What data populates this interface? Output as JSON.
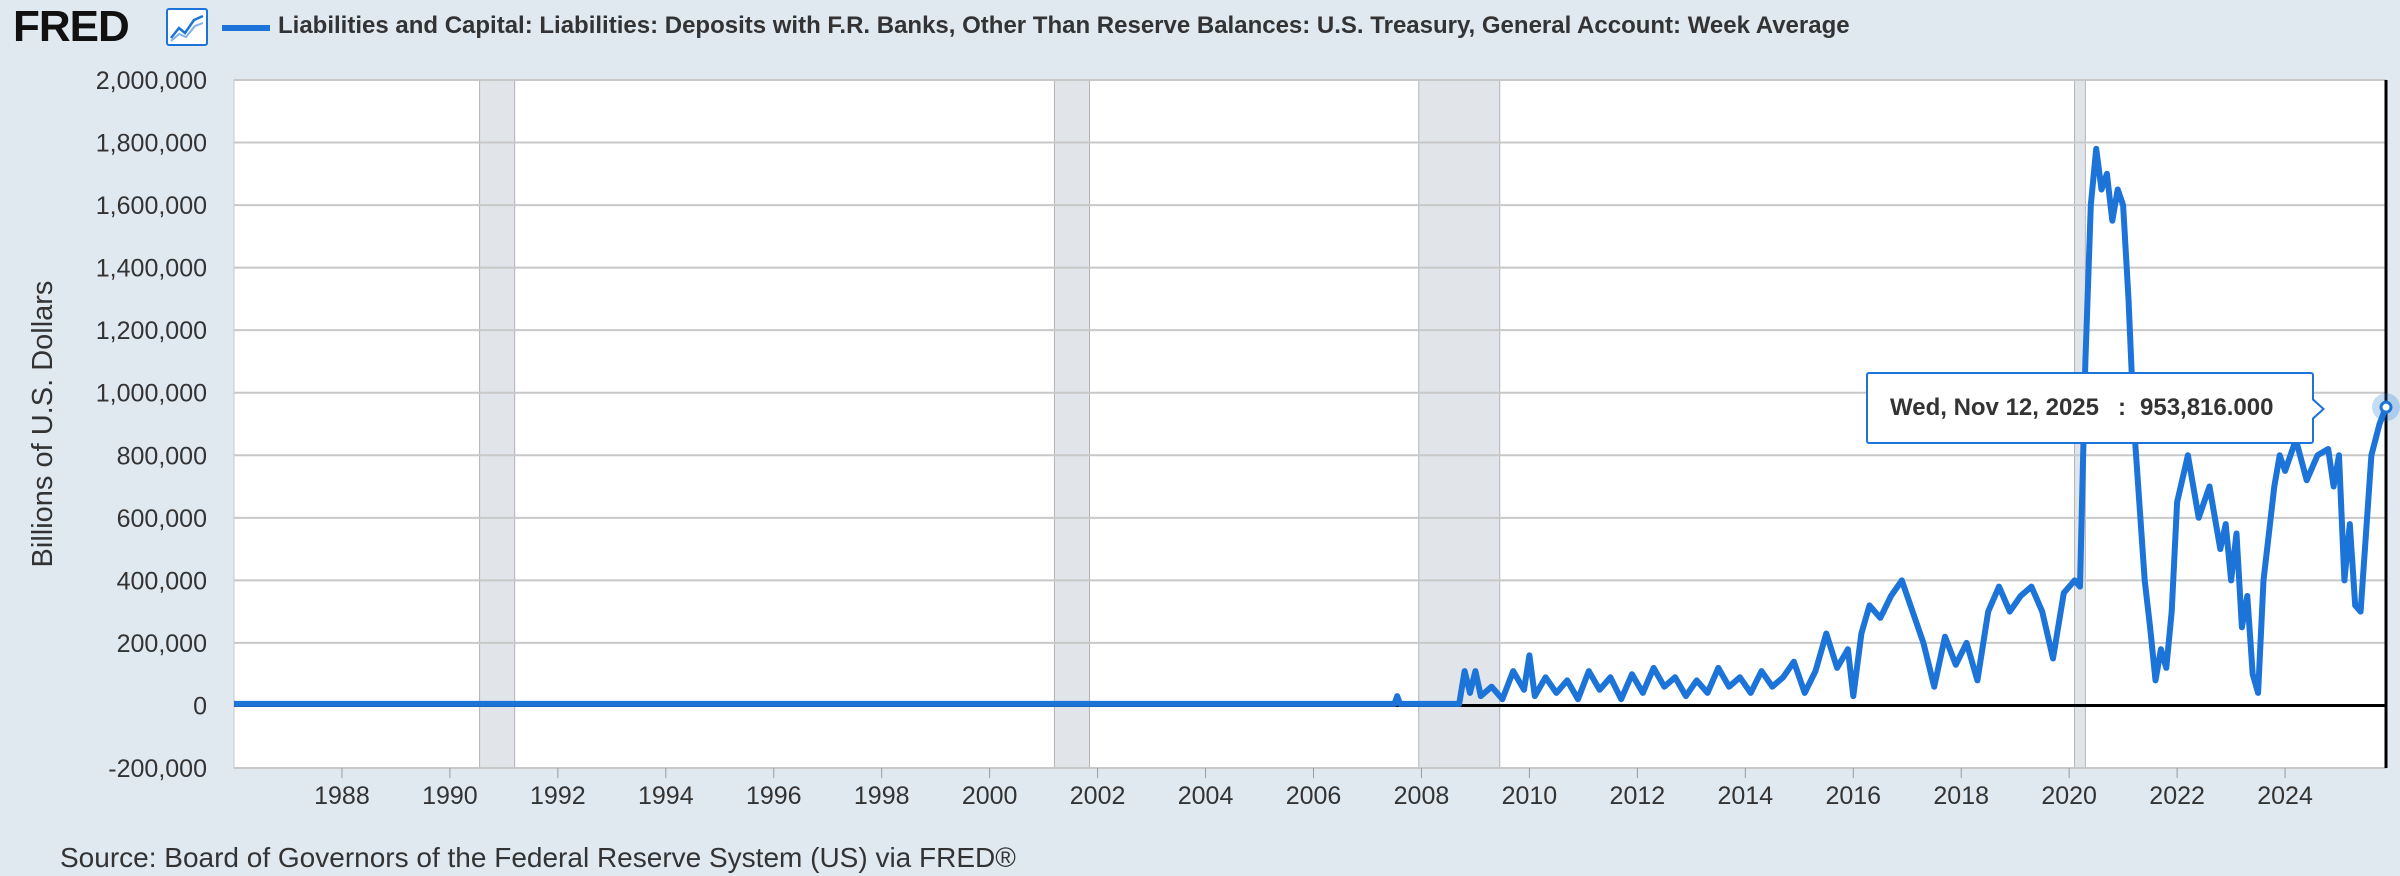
{
  "header": {
    "logo": "FRED",
    "logo_icon": "line-chart-icon",
    "series_title": "Liabilities and Capital: Liabilities: Deposits with F.R. Banks, Other Than Reserve Balances: U.S. Treasury, General Account: Week Average"
  },
  "source": "Source: Board of Governors of the Federal Reserve System (US) via FRED®",
  "tooltip": {
    "date": "Wed, Nov 12, 2025",
    "separator": ":",
    "value": "953,816.000"
  },
  "colors": {
    "series": "#1c74d8",
    "background": "#e1e9f0",
    "plot": "#ffffff",
    "recession": "#e1e5e9",
    "grid": "#c8c8c8"
  },
  "chart_data": {
    "type": "line",
    "title": "Liabilities and Capital: Liabilities: Deposits with F.R. Banks, Other Than Reserve Balances: U.S. Treasury, General Account: Week Average",
    "xlabel": "",
    "ylabel": "Billions of U.S. Dollars",
    "xlim": [
      1986.0,
      2025.87
    ],
    "ylim": [
      -200000,
      2000000
    ],
    "y_ticks": [
      -200000,
      0,
      200000,
      400000,
      600000,
      800000,
      1000000,
      1200000,
      1400000,
      1600000,
      1800000,
      2000000
    ],
    "y_tick_labels": [
      "-200,000",
      "0",
      "200,000",
      "400,000",
      "600,000",
      "800,000",
      "1,000,000",
      "1,200,000",
      "1,400,000",
      "1,600,000",
      "1,800,000",
      "2,000,000"
    ],
    "x_ticks": [
      1988,
      1990,
      1992,
      1994,
      1996,
      1998,
      2000,
      2002,
      2004,
      2006,
      2008,
      2010,
      2012,
      2014,
      2016,
      2018,
      2020,
      2022,
      2024
    ],
    "x_tick_labels": [
      "1988",
      "1990",
      "1992",
      "1994",
      "1996",
      "1998",
      "2000",
      "2002",
      "2004",
      "2006",
      "2008",
      "2010",
      "2012",
      "2014",
      "2016",
      "2018",
      "2020",
      "2022",
      "2024"
    ],
    "grid": true,
    "recessions": [
      [
        1990.55,
        1991.2
      ],
      [
        2001.2,
        2001.85
      ],
      [
        2007.95,
        2009.45
      ],
      [
        2020.1,
        2020.3
      ]
    ],
    "series": [
      {
        "name": "Liabilities and Capital: Liabilities: Deposits with F.R. Banks, Other Than Reserve Balances: U.S. Treasury, General Account: Week Average",
        "points": [
          [
            1986.0,
            5000
          ],
          [
            1990.0,
            5000
          ],
          [
            1995.0,
            5000
          ],
          [
            2000.0,
            5000
          ],
          [
            2002.96,
            5000
          ],
          [
            2003.0,
            5000
          ],
          [
            2005.0,
            5000
          ],
          [
            2007.5,
            5000
          ],
          [
            2007.55,
            30000
          ],
          [
            2007.6,
            5000
          ],
          [
            2008.7,
            5000
          ],
          [
            2008.8,
            110000
          ],
          [
            2008.9,
            40000
          ],
          [
            2009.0,
            110000
          ],
          [
            2009.1,
            30000
          ],
          [
            2009.3,
            60000
          ],
          [
            2009.5,
            20000
          ],
          [
            2009.7,
            110000
          ],
          [
            2009.9,
            50000
          ],
          [
            2010.0,
            160000
          ],
          [
            2010.1,
            30000
          ],
          [
            2010.3,
            90000
          ],
          [
            2010.5,
            40000
          ],
          [
            2010.7,
            80000
          ],
          [
            2010.9,
            20000
          ],
          [
            2011.1,
            110000
          ],
          [
            2011.3,
            50000
          ],
          [
            2011.5,
            90000
          ],
          [
            2011.7,
            20000
          ],
          [
            2011.9,
            100000
          ],
          [
            2012.1,
            40000
          ],
          [
            2012.3,
            120000
          ],
          [
            2012.5,
            60000
          ],
          [
            2012.7,
            90000
          ],
          [
            2012.9,
            30000
          ],
          [
            2013.1,
            80000
          ],
          [
            2013.3,
            40000
          ],
          [
            2013.5,
            120000
          ],
          [
            2013.7,
            60000
          ],
          [
            2013.9,
            90000
          ],
          [
            2014.1,
            40000
          ],
          [
            2014.3,
            110000
          ],
          [
            2014.5,
            60000
          ],
          [
            2014.7,
            90000
          ],
          [
            2014.9,
            140000
          ],
          [
            2015.1,
            40000
          ],
          [
            2015.3,
            110000
          ],
          [
            2015.5,
            230000
          ],
          [
            2015.7,
            120000
          ],
          [
            2015.9,
            180000
          ],
          [
            2016.0,
            30000
          ],
          [
            2016.15,
            230000
          ],
          [
            2016.3,
            320000
          ],
          [
            2016.5,
            280000
          ],
          [
            2016.7,
            350000
          ],
          [
            2016.9,
            400000
          ],
          [
            2017.1,
            300000
          ],
          [
            2017.3,
            200000
          ],
          [
            2017.5,
            60000
          ],
          [
            2017.7,
            220000
          ],
          [
            2017.9,
            130000
          ],
          [
            2018.1,
            200000
          ],
          [
            2018.3,
            80000
          ],
          [
            2018.5,
            300000
          ],
          [
            2018.7,
            380000
          ],
          [
            2018.9,
            300000
          ],
          [
            2019.1,
            350000
          ],
          [
            2019.3,
            380000
          ],
          [
            2019.5,
            300000
          ],
          [
            2019.7,
            150000
          ],
          [
            2019.9,
            360000
          ],
          [
            2020.1,
            400000
          ],
          [
            2020.2,
            380000
          ],
          [
            2020.3,
            1100000
          ],
          [
            2020.4,
            1600000
          ],
          [
            2020.5,
            1780000
          ],
          [
            2020.6,
            1650000
          ],
          [
            2020.7,
            1700000
          ],
          [
            2020.8,
            1550000
          ],
          [
            2020.9,
            1650000
          ],
          [
            2021.0,
            1600000
          ],
          [
            2021.1,
            1300000
          ],
          [
            2021.2,
            900000
          ],
          [
            2021.3,
            650000
          ],
          [
            2021.4,
            400000
          ],
          [
            2021.5,
            250000
          ],
          [
            2021.6,
            80000
          ],
          [
            2021.7,
            180000
          ],
          [
            2021.8,
            120000
          ],
          [
            2021.9,
            300000
          ],
          [
            2022.0,
            650000
          ],
          [
            2022.2,
            800000
          ],
          [
            2022.4,
            600000
          ],
          [
            2022.6,
            700000
          ],
          [
            2022.8,
            500000
          ],
          [
            2022.9,
            580000
          ],
          [
            2023.0,
            400000
          ],
          [
            2023.1,
            550000
          ],
          [
            2023.2,
            250000
          ],
          [
            2023.3,
            350000
          ],
          [
            2023.4,
            100000
          ],
          [
            2023.5,
            40000
          ],
          [
            2023.6,
            400000
          ],
          [
            2023.7,
            550000
          ],
          [
            2023.8,
            700000
          ],
          [
            2023.9,
            800000
          ],
          [
            2024.0,
            750000
          ],
          [
            2024.2,
            850000
          ],
          [
            2024.4,
            720000
          ],
          [
            2024.6,
            800000
          ],
          [
            2024.8,
            820000
          ],
          [
            2024.9,
            700000
          ],
          [
            2025.0,
            800000
          ],
          [
            2025.1,
            400000
          ],
          [
            2025.2,
            580000
          ],
          [
            2025.3,
            320000
          ],
          [
            2025.4,
            300000
          ],
          [
            2025.5,
            550000
          ],
          [
            2025.6,
            800000
          ],
          [
            2025.75,
            900000
          ],
          [
            2025.87,
            953816
          ]
        ]
      }
    ],
    "highlight_point": [
      2025.87,
      953816
    ]
  }
}
